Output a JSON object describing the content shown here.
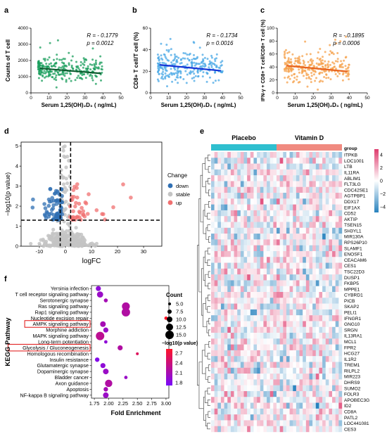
{
  "chart_data": [
    {
      "panel": "a",
      "type": "scatter",
      "xlabel": "Serum 1,25(OH)₂D₃ ( ng/mL)",
      "ylabel": "Counts of T cell",
      "xlim": [
        0,
        50
      ],
      "ylim": [
        0,
        4000
      ],
      "xticks": [
        "0",
        "10",
        "20",
        "30",
        "40",
        "50"
      ],
      "yticks": [
        "0",
        "1000",
        "2000",
        "3000",
        "4000"
      ],
      "annotations": [
        "R = - 0.1779",
        "p = 0.0012"
      ],
      "color": "#1a9e5c",
      "line_color": "#0b5a2e",
      "fit": {
        "x": [
          5,
          39
        ],
        "y": [
          1520,
          1200
        ]
      },
      "points": {
        "n": 260,
        "x_range": [
          4,
          40
        ],
        "y_center": 1450,
        "y_spread": 520,
        "y_max": 3300
      }
    },
    {
      "panel": "b",
      "type": "scatter",
      "xlabel": "Serum 1,25(OH)₂D₃ ( ng/mL)",
      "ylabel": "CD8+ T cell/T cell (%)",
      "xlim": [
        0,
        50
      ],
      "ylim": [
        0,
        60
      ],
      "xticks": [
        "0",
        "10",
        "20",
        "30",
        "40",
        "50"
      ],
      "yticks": [
        "0",
        "20",
        "40",
        "60"
      ],
      "annotations": [
        "R = - 0.1734",
        "p = 0.0016"
      ],
      "color": "#4aa8e6",
      "line_color": "#1533d6",
      "fit": {
        "x": [
          5,
          39
        ],
        "y": [
          26,
          20.5
        ]
      },
      "points": {
        "n": 260,
        "x_range": [
          4,
          40
        ],
        "y_center": 24,
        "y_spread": 8.5,
        "y_max": 52
      }
    },
    {
      "panel": "c",
      "type": "scatter",
      "xlabel": "Serum 1,25(OH)₂D₃ ( ng/mL)",
      "ylabel": "IFN-γ + CD8+ T cell/CD8+ T cell (%)",
      "xlim": [
        0,
        50
      ],
      "ylim": [
        0,
        100
      ],
      "xticks": [
        "0",
        "10",
        "20",
        "30",
        "40",
        "50"
      ],
      "yticks": [
        "0",
        "20",
        "40",
        "60",
        "80",
        "100"
      ],
      "annotations": [
        "R = - 0.1895",
        "p = 0.0006"
      ],
      "color": "#f5a04a",
      "line_color": "#e8641e",
      "fit": {
        "x": [
          5,
          39
        ],
        "y": [
          42,
          33
        ]
      },
      "points": {
        "n": 260,
        "x_range": [
          4,
          40
        ],
        "y_center": 38,
        "y_spread": 15,
        "y_max": 88
      }
    },
    {
      "panel": "d",
      "type": "scatter",
      "title": "",
      "xlabel": "logFC",
      "ylabel": "−log10(p value)",
      "xlim": [
        -17,
        37
      ],
      "ylim": [
        0,
        5.2
      ],
      "xticks": [
        -10,
        0,
        10,
        20,
        30
      ],
      "yticks": [
        0,
        1,
        2,
        3,
        4,
        5
      ],
      "thresholds": {
        "x": [
          -2,
          2
        ],
        "y": 1.3
      },
      "legend": {
        "title": "Change",
        "items": [
          "down",
          "stable",
          "up"
        ],
        "colors": [
          "#2f6fb3",
          "#c4c4c4",
          "#f07070"
        ]
      },
      "series": [
        {
          "name": "down",
          "n": 70,
          "x_range": [
            -13,
            -1.2
          ],
          "y_range": [
            1.32,
            2.9
          ]
        },
        {
          "name": "stable",
          "n": 320,
          "x_range": [
            -14,
            12
          ],
          "y_range": [
            0,
            1.29
          ]
        },
        {
          "name": "up",
          "n": 45,
          "x_range": [
            1.5,
            32
          ],
          "y_range": [
            1.32,
            3.1
          ]
        }
      ]
    },
    {
      "panel": "e",
      "type": "heatmap",
      "groups": [
        "Placebo",
        "Vitamin D"
      ],
      "group_colors": [
        "#2fbfcf",
        "#f08a80"
      ],
      "group_label": "group",
      "rows": [
        "ITPKB",
        "LOC1001",
        "LTB",
        "IL11RA",
        "ABLIM1",
        "FLT3LG",
        "CDC42SE1",
        "AGTPBP1",
        "DDX17",
        "EIF1AX",
        "CD52",
        "AKTIP",
        "TSEN15",
        "SH3YL1",
        "MIR130A",
        "RPS26P10",
        "SLAMF1",
        "ENOSF1",
        "CEACAM6",
        "CES1",
        "TSC22D3",
        "DUSP1",
        "FKBP5",
        "MPPE1",
        "CYBRD1",
        "PICB",
        "SKAP2",
        "PELI1",
        "IFNGR1",
        "GNG10",
        "SRGN",
        "IL13RA1",
        "MCL1",
        "FPR2",
        "HCG27",
        "IL1R2",
        "TREM1",
        "RILPL2",
        "MIR223",
        "DHRS9",
        "SUMO2",
        "FOLR3",
        "APOBEC3G",
        "ID2",
        "CD8A",
        "PATL2",
        "LOC441081",
        "CES3"
      ],
      "colorbar_ticks": [
        "4",
        "2",
        "0",
        "−2",
        "−4"
      ],
      "columns": 40
    },
    {
      "panel": "f",
      "type": "scatter",
      "ylabel": "KEGG Pathway",
      "xlabel": "Fold Enrichment",
      "xlim": [
        1.7,
        3.05
      ],
      "xticks": [
        "1.75",
        "2.00",
        "2.25",
        "2.50",
        "2.75",
        "3.00"
      ],
      "size_legend": {
        "title": "Count",
        "values": [
          "5.0",
          "7.5",
          "10.0",
          "12.5",
          "15.0"
        ]
      },
      "color_legend": {
        "title": "−log10(p value)",
        "ticks": [
          "2.7",
          "2.4",
          "2.1",
          "1.8"
        ],
        "range": [
          1.7,
          2.9
        ]
      },
      "pathways": [
        "Yersinia infection",
        "T cell receptor signaling pathway",
        "Serotonergic synapse",
        "Ras signaling pathway",
        "Rap1 signaling pathway",
        "Nucleotide excision repair",
        "AMPK signaling pathway",
        "Morphine addiction",
        "MAPK signaling pathway",
        "Long-term potentiation",
        "Glycolysis / Gluconeogenesis",
        "Homologous recombination",
        "Insulin resistance",
        "Glutamatergic synapse",
        "Dopaminergic synapse",
        "Bladder cancer",
        "Axon guidance",
        "Apoptosis",
        "NF-kappa B signaling pathway"
      ],
      "highlighted": [
        "AMPK signaling pathway",
        "Glycolysis / Gluconeogenesis"
      ],
      "fold_enrichment": [
        1.82,
        1.85,
        1.95,
        2.3,
        2.3,
        3.0,
        1.9,
        1.95,
        1.85,
        1.95,
        2.2,
        2.5,
        1.8,
        1.9,
        1.95,
        2.3,
        2.0,
        1.95,
        1.95
      ],
      "count": [
        9,
        11,
        7,
        14,
        15,
        6,
        10,
        9,
        15,
        6,
        9,
        5,
        8,
        9,
        10,
        6,
        13,
        8,
        10
      ],
      "neg_log10_p": [
        1.9,
        2.0,
        2.1,
        2.2,
        2.2,
        2.9,
        2.1,
        2.0,
        2.3,
        1.9,
        2.2,
        2.6,
        1.8,
        1.9,
        2.0,
        2.0,
        2.2,
        2.1,
        2.0
      ]
    }
  ]
}
